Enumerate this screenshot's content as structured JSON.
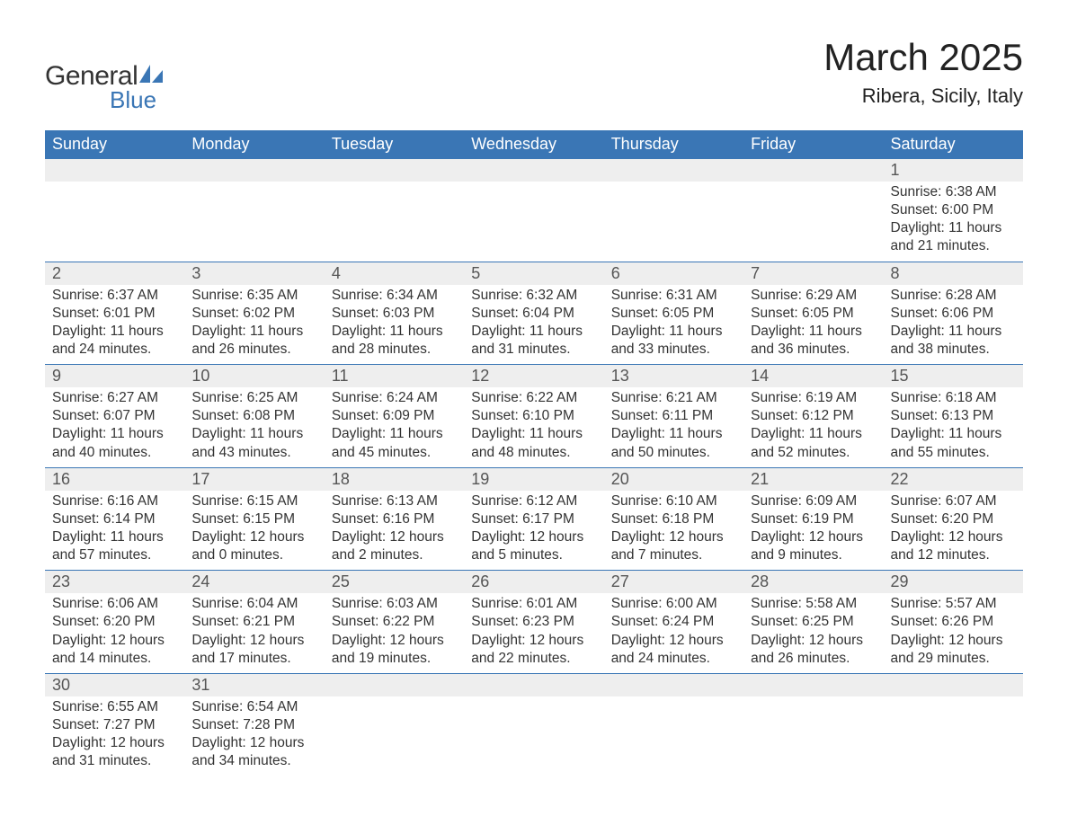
{
  "logo": {
    "text_general": "General",
    "text_blue": "Blue",
    "sail_color": "#3a76b5"
  },
  "title": "March 2025",
  "location": "Ribera, Sicily, Italy",
  "colors": {
    "header_bg": "#3a76b5",
    "header_text": "#ffffff",
    "daynum_bg": "#eeeeee",
    "row_border": "#3a76b5",
    "body_text": "#333333",
    "daynum_text": "#555555"
  },
  "typography": {
    "title_fontsize": 42,
    "location_fontsize": 22,
    "header_fontsize": 18,
    "daynum_fontsize": 18,
    "detail_fontsize": 15.5
  },
  "weekdays": [
    "Sunday",
    "Monday",
    "Tuesday",
    "Wednesday",
    "Thursday",
    "Friday",
    "Saturday"
  ],
  "weeks": [
    [
      null,
      null,
      null,
      null,
      null,
      null,
      {
        "day": "1",
        "sunrise": "6:38 AM",
        "sunset": "6:00 PM",
        "daylight": "11 hours and 21 minutes."
      }
    ],
    [
      {
        "day": "2",
        "sunrise": "6:37 AM",
        "sunset": "6:01 PM",
        "daylight": "11 hours and 24 minutes."
      },
      {
        "day": "3",
        "sunrise": "6:35 AM",
        "sunset": "6:02 PM",
        "daylight": "11 hours and 26 minutes."
      },
      {
        "day": "4",
        "sunrise": "6:34 AM",
        "sunset": "6:03 PM",
        "daylight": "11 hours and 28 minutes."
      },
      {
        "day": "5",
        "sunrise": "6:32 AM",
        "sunset": "6:04 PM",
        "daylight": "11 hours and 31 minutes."
      },
      {
        "day": "6",
        "sunrise": "6:31 AM",
        "sunset": "6:05 PM",
        "daylight": "11 hours and 33 minutes."
      },
      {
        "day": "7",
        "sunrise": "6:29 AM",
        "sunset": "6:05 PM",
        "daylight": "11 hours and 36 minutes."
      },
      {
        "day": "8",
        "sunrise": "6:28 AM",
        "sunset": "6:06 PM",
        "daylight": "11 hours and 38 minutes."
      }
    ],
    [
      {
        "day": "9",
        "sunrise": "6:27 AM",
        "sunset": "6:07 PM",
        "daylight": "11 hours and 40 minutes."
      },
      {
        "day": "10",
        "sunrise": "6:25 AM",
        "sunset": "6:08 PM",
        "daylight": "11 hours and 43 minutes."
      },
      {
        "day": "11",
        "sunrise": "6:24 AM",
        "sunset": "6:09 PM",
        "daylight": "11 hours and 45 minutes."
      },
      {
        "day": "12",
        "sunrise": "6:22 AM",
        "sunset": "6:10 PM",
        "daylight": "11 hours and 48 minutes."
      },
      {
        "day": "13",
        "sunrise": "6:21 AM",
        "sunset": "6:11 PM",
        "daylight": "11 hours and 50 minutes."
      },
      {
        "day": "14",
        "sunrise": "6:19 AM",
        "sunset": "6:12 PM",
        "daylight": "11 hours and 52 minutes."
      },
      {
        "day": "15",
        "sunrise": "6:18 AM",
        "sunset": "6:13 PM",
        "daylight": "11 hours and 55 minutes."
      }
    ],
    [
      {
        "day": "16",
        "sunrise": "6:16 AM",
        "sunset": "6:14 PM",
        "daylight": "11 hours and 57 minutes."
      },
      {
        "day": "17",
        "sunrise": "6:15 AM",
        "sunset": "6:15 PM",
        "daylight": "12 hours and 0 minutes."
      },
      {
        "day": "18",
        "sunrise": "6:13 AM",
        "sunset": "6:16 PM",
        "daylight": "12 hours and 2 minutes."
      },
      {
        "day": "19",
        "sunrise": "6:12 AM",
        "sunset": "6:17 PM",
        "daylight": "12 hours and 5 minutes."
      },
      {
        "day": "20",
        "sunrise": "6:10 AM",
        "sunset": "6:18 PM",
        "daylight": "12 hours and 7 minutes."
      },
      {
        "day": "21",
        "sunrise": "6:09 AM",
        "sunset": "6:19 PM",
        "daylight": "12 hours and 9 minutes."
      },
      {
        "day": "22",
        "sunrise": "6:07 AM",
        "sunset": "6:20 PM",
        "daylight": "12 hours and 12 minutes."
      }
    ],
    [
      {
        "day": "23",
        "sunrise": "6:06 AM",
        "sunset": "6:20 PM",
        "daylight": "12 hours and 14 minutes."
      },
      {
        "day": "24",
        "sunrise": "6:04 AM",
        "sunset": "6:21 PM",
        "daylight": "12 hours and 17 minutes."
      },
      {
        "day": "25",
        "sunrise": "6:03 AM",
        "sunset": "6:22 PM",
        "daylight": "12 hours and 19 minutes."
      },
      {
        "day": "26",
        "sunrise": "6:01 AM",
        "sunset": "6:23 PM",
        "daylight": "12 hours and 22 minutes."
      },
      {
        "day": "27",
        "sunrise": "6:00 AM",
        "sunset": "6:24 PM",
        "daylight": "12 hours and 24 minutes."
      },
      {
        "day": "28",
        "sunrise": "5:58 AM",
        "sunset": "6:25 PM",
        "daylight": "12 hours and 26 minutes."
      },
      {
        "day": "29",
        "sunrise": "5:57 AM",
        "sunset": "6:26 PM",
        "daylight": "12 hours and 29 minutes."
      }
    ],
    [
      {
        "day": "30",
        "sunrise": "6:55 AM",
        "sunset": "7:27 PM",
        "daylight": "12 hours and 31 minutes."
      },
      {
        "day": "31",
        "sunrise": "6:54 AM",
        "sunset": "7:28 PM",
        "daylight": "12 hours and 34 minutes."
      },
      null,
      null,
      null,
      null,
      null
    ]
  ],
  "labels": {
    "sunrise_prefix": "Sunrise: ",
    "sunset_prefix": "Sunset: ",
    "daylight_prefix": "Daylight: "
  }
}
